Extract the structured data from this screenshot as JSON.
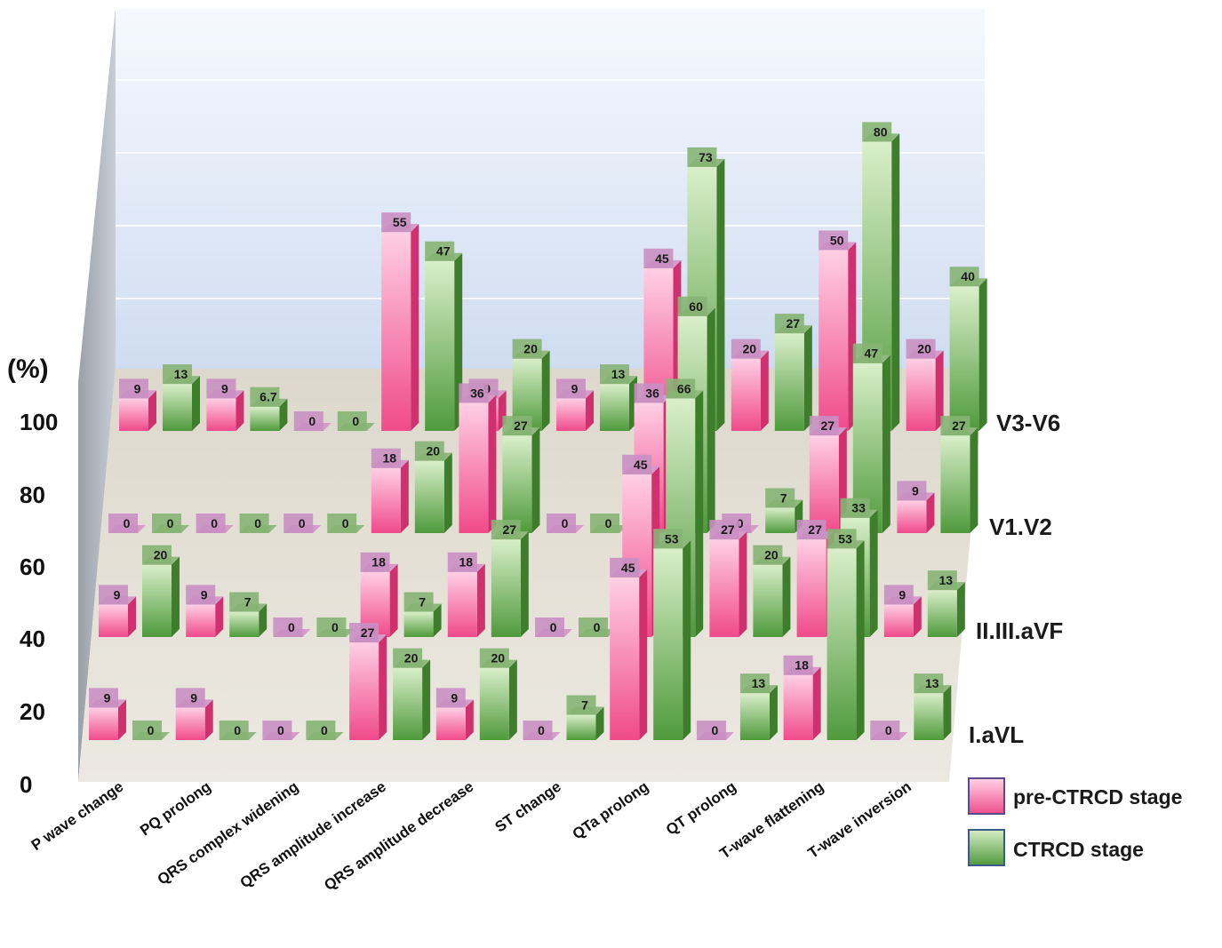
{
  "chart_data": {
    "type": "bar",
    "subtype": "3d-grouped",
    "title": "",
    "ylabel": "(%)",
    "ylim": [
      0,
      100
    ],
    "yticks": [
      0,
      20,
      40,
      60,
      80,
      100
    ],
    "categories": [
      "P wave change",
      "PQ prolong",
      "QRS complex widening",
      "QRS amplitude increase",
      "QRS amplitude decrease",
      "ST change",
      "QTa prolong",
      "QT prolong",
      "T-wave flattening",
      "T-wave inversion"
    ],
    "rows": [
      {
        "name": "I.aVL",
        "pre": [
          9,
          9,
          0,
          27,
          9,
          0,
          45,
          0,
          18,
          0
        ],
        "ctrcd": [
          0,
          0,
          0,
          20,
          20,
          7,
          53,
          13,
          53,
          13
        ]
      },
      {
        "name": "II.III.aVF",
        "pre": [
          9,
          9,
          0,
          18,
          18,
          0,
          45,
          27,
          27,
          9
        ],
        "ctrcd": [
          20,
          7,
          0,
          7,
          27,
          0,
          66,
          20,
          33,
          13
        ]
      },
      {
        "name": "V1.V2",
        "pre": [
          0,
          0,
          0,
          18,
          36,
          0,
          36,
          0,
          27,
          9
        ],
        "ctrcd": [
          0,
          0,
          0,
          20,
          27,
          0,
          60,
          7,
          47,
          27
        ]
      },
      {
        "name": "V3-V6",
        "pre": [
          9,
          9,
          0,
          55,
          9,
          9,
          45,
          20,
          50,
          20
        ],
        "ctrcd": [
          13,
          6.7,
          0,
          47,
          20,
          13,
          73,
          27,
          80,
          40
        ]
      }
    ],
    "series": [
      {
        "name": "pre-CTRCD stage",
        "color": "#f06ca8"
      },
      {
        "name": "CTRCD stage",
        "color": "#6aaa55"
      }
    ],
    "legend_position": "bottom-right",
    "grid": true
  }
}
